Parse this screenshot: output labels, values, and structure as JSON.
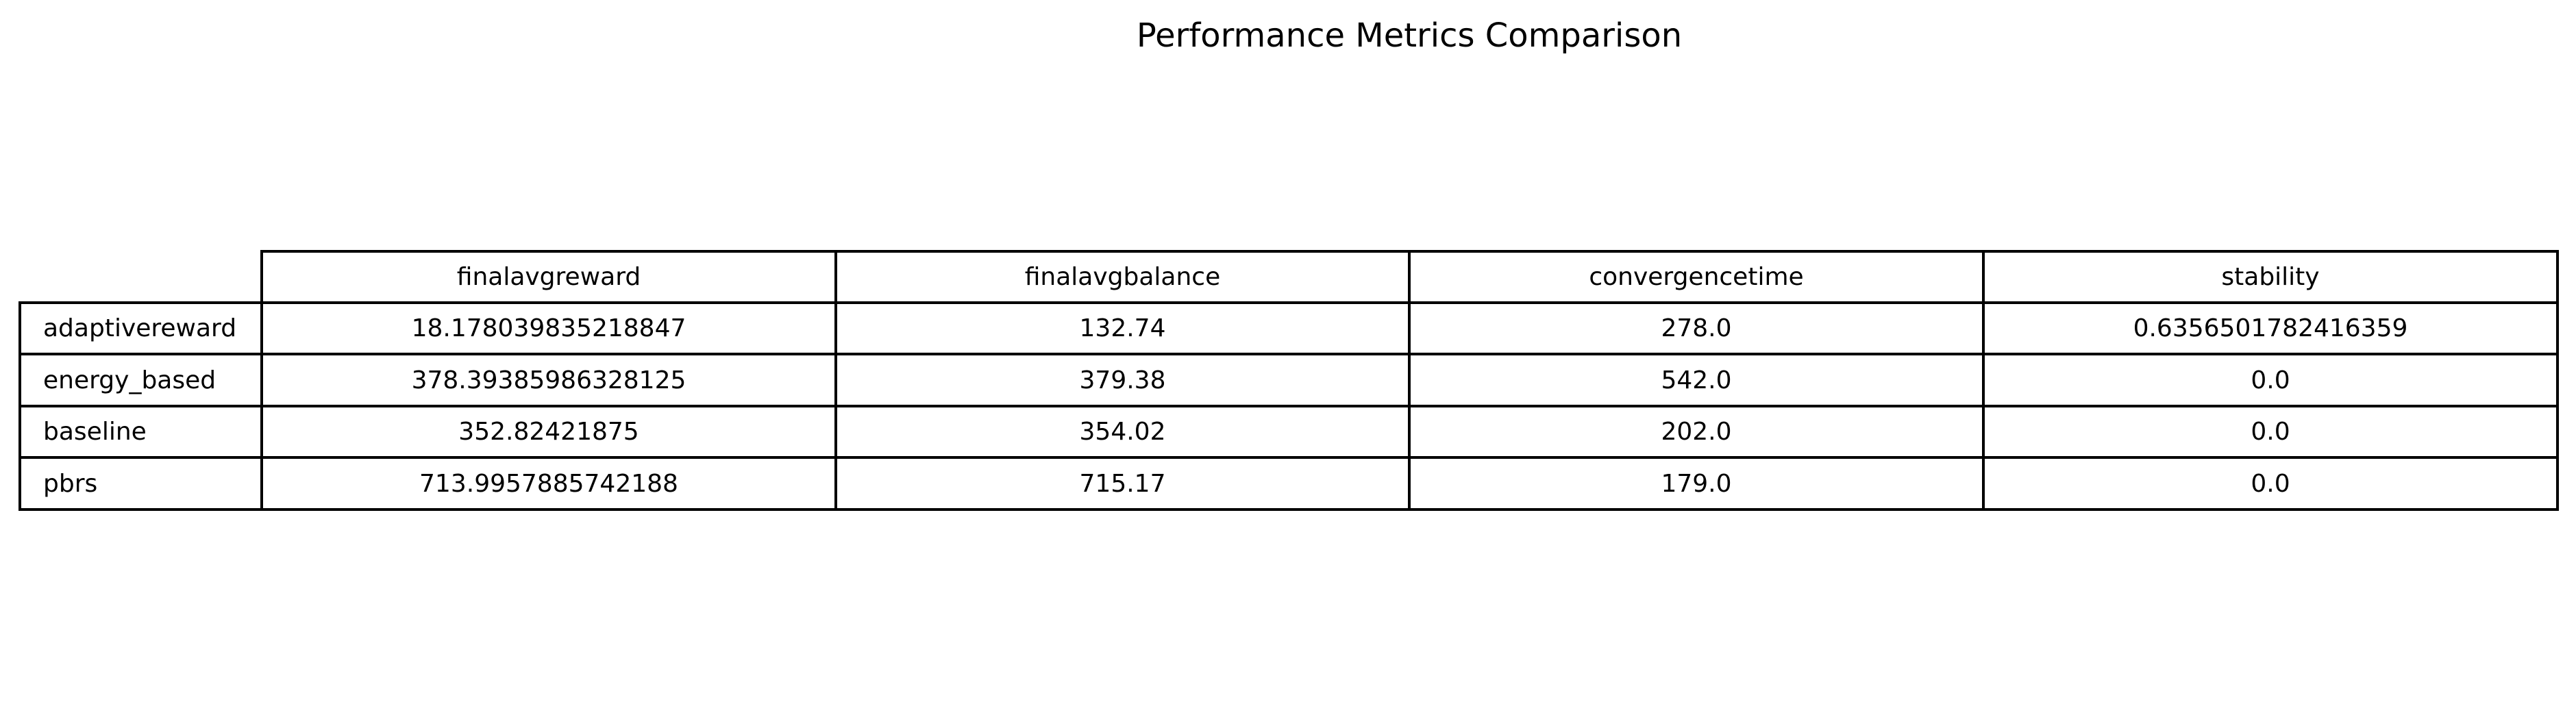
{
  "title": "Performance Metrics Comparison",
  "chart_data": {
    "type": "table",
    "title": "Performance Metrics Comparison",
    "columns": [
      "finalavgreward",
      "finalavgbalance",
      "convergencetime",
      "stability"
    ],
    "rows": [
      {
        "label": "adaptivereward",
        "values": [
          "18.178039835218847",
          "132.74",
          "278.0",
          "0.6356501782416359"
        ]
      },
      {
        "label": "energy_based",
        "values": [
          "378.39385986328125",
          "379.38",
          "542.0",
          "0.0"
        ]
      },
      {
        "label": "baseline",
        "values": [
          "352.82421875",
          "354.02",
          "202.0",
          "0.0"
        ]
      },
      {
        "label": "pbrs",
        "values": [
          "713.9957885742188",
          "715.17",
          "179.0",
          "0.0"
        ]
      }
    ]
  }
}
